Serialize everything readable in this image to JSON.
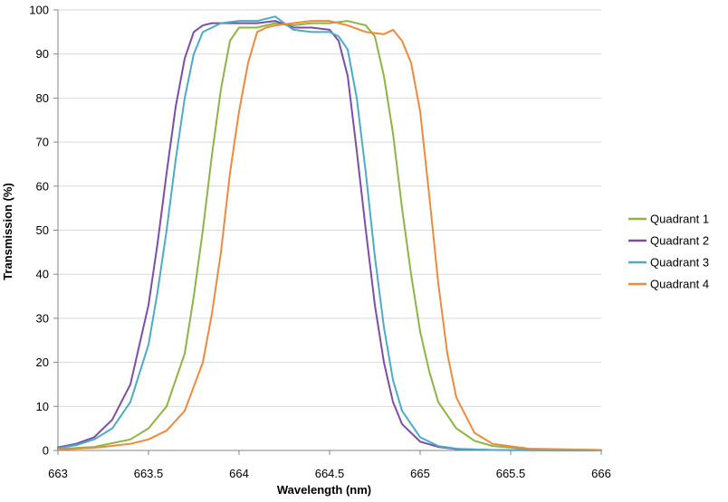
{
  "chart_data": {
    "type": "line",
    "title": "",
    "xlabel": "Wavelength (nm)",
    "ylabel": "Transmission (%)",
    "xlim": [
      663,
      666
    ],
    "ylim": [
      0,
      100
    ],
    "x_ticks": [
      663,
      663.5,
      664,
      664.5,
      665,
      665.5,
      666
    ],
    "x_tick_labels": [
      "663",
      "663.5",
      "664",
      "664.5",
      "665",
      "665.5",
      "666"
    ],
    "y_ticks": [
      0,
      10,
      20,
      30,
      40,
      50,
      60,
      70,
      80,
      90,
      100
    ],
    "y_tick_labels": [
      "0",
      "10",
      "20",
      "30",
      "40",
      "50",
      "60",
      "70",
      "80",
      "90",
      "100"
    ],
    "grid": "horizontal",
    "legend_position": "right",
    "series": [
      {
        "name": "Quadrant 1",
        "color": "#8db543",
        "x": [
          663.0,
          663.2,
          663.4,
          663.5,
          663.6,
          663.7,
          663.75,
          663.8,
          663.85,
          663.9,
          663.95,
          664.0,
          664.05,
          664.1,
          664.2,
          664.3,
          664.4,
          664.5,
          664.6,
          664.7,
          664.75,
          664.8,
          664.85,
          664.9,
          664.95,
          665.0,
          665.05,
          665.1,
          665.2,
          665.3,
          665.4,
          665.6,
          666.0
        ],
        "y": [
          0.3,
          0.8,
          2.5,
          5,
          10,
          22,
          35,
          50,
          67,
          82,
          93,
          96,
          96,
          96,
          97,
          96.5,
          97,
          97,
          97.5,
          96.5,
          94,
          85,
          72,
          55,
          40,
          27,
          18,
          11,
          5,
          2.2,
          1,
          0.3,
          0.1
        ]
      },
      {
        "name": "Quadrant 2",
        "color": "#7b4ea8",
        "x": [
          663.0,
          663.1,
          663.2,
          663.3,
          663.4,
          663.5,
          663.55,
          663.6,
          663.65,
          663.7,
          663.75,
          663.8,
          663.85,
          663.9,
          664.0,
          664.1,
          664.2,
          664.3,
          664.4,
          664.5,
          664.55,
          664.6,
          664.65,
          664.7,
          664.75,
          664.8,
          664.85,
          664.9,
          665.0,
          665.1,
          665.2,
          665.4,
          666.0
        ],
        "y": [
          0.7,
          1.5,
          3,
          7,
          15,
          33,
          47,
          63,
          78,
          89,
          95,
          96.5,
          97,
          97,
          97,
          97,
          97.5,
          96,
          96,
          95.5,
          93,
          85,
          68,
          50,
          33,
          20,
          11,
          6,
          2,
          0.8,
          0.3,
          0.1,
          0
        ]
      },
      {
        "name": "Quadrant 3",
        "color": "#4bacc6",
        "x": [
          663.0,
          663.1,
          663.2,
          663.3,
          663.4,
          663.5,
          663.55,
          663.6,
          663.65,
          663.7,
          663.75,
          663.8,
          663.85,
          663.9,
          664.0,
          664.1,
          664.2,
          664.3,
          664.4,
          664.5,
          664.55,
          664.6,
          664.65,
          664.7,
          664.75,
          664.8,
          664.85,
          664.9,
          665.0,
          665.1,
          665.2,
          665.4,
          666.0
        ],
        "y": [
          0.5,
          1.2,
          2.5,
          5,
          11,
          24,
          36,
          50,
          66,
          80,
          90,
          95,
          96,
          97,
          97.5,
          97.5,
          98.5,
          95.5,
          95,
          95,
          94,
          91,
          80,
          63,
          44,
          28,
          16,
          9,
          3,
          1,
          0.4,
          0.1,
          0
        ]
      },
      {
        "name": "Quadrant 4",
        "color": "#f08a3b",
        "x": [
          663.0,
          663.2,
          663.4,
          663.5,
          663.6,
          663.7,
          663.8,
          663.85,
          663.9,
          663.95,
          664.0,
          664.05,
          664.1,
          664.15,
          664.2,
          664.3,
          664.4,
          664.5,
          664.6,
          664.7,
          664.8,
          664.85,
          664.9,
          664.95,
          665.0,
          665.05,
          665.1,
          665.15,
          665.2,
          665.3,
          665.4,
          665.6,
          666.0
        ],
        "y": [
          0.2,
          0.6,
          1.5,
          2.5,
          4.5,
          9,
          20,
          31,
          45,
          63,
          77,
          88,
          95,
          96,
          96.5,
          97,
          97.5,
          97.5,
          96.5,
          95,
          94.5,
          95.5,
          93,
          88,
          77,
          58,
          38,
          22,
          12,
          4,
          1.5,
          0.4,
          0.1
        ]
      }
    ]
  }
}
